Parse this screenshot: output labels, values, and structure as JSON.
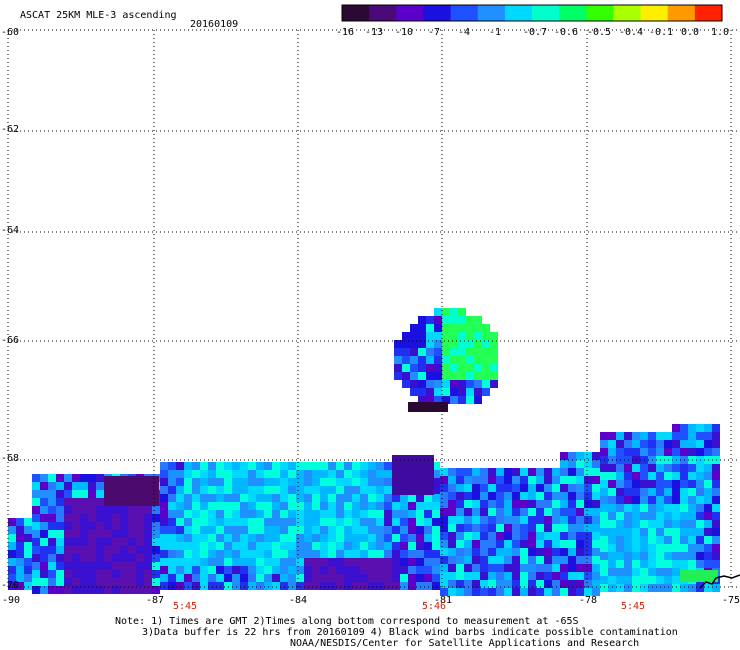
{
  "header": {
    "title": "ASCAT 25KM MLE-3 ascending",
    "date": "20160109"
  },
  "colorbar": {
    "labels": [
      "-16",
      "-13",
      "-10",
      "-7",
      "-4",
      "-1",
      "-0.7",
      "-0.6",
      "-0.5",
      "-0.4",
      "-0.1",
      "0.0",
      "1.0"
    ],
    "colors": [
      "#2a0a33",
      "#4b0a7a",
      "#5a00c8",
      "#1a10e0",
      "#1e50ff",
      "#1e90ff",
      "#00d8ff",
      "#00ffcc",
      "#00ff66",
      "#33ff00",
      "#aaff00",
      "#ffee00",
      "#ff9900",
      "#ff2200"
    ]
  },
  "map": {
    "lat_labels": [
      "-60",
      "-62",
      "-64",
      "-66",
      "-68",
      "-70"
    ],
    "lon_labels": [
      "-90",
      "-87",
      "-84",
      "-81",
      "-78",
      "-75"
    ],
    "time_labels": [
      "5:45",
      "5:46",
      "5:45"
    ]
  },
  "footer": {
    "line1": "Note: 1) Times are GMT 2)Times along bottom correspond to measurement at -65S",
    "line2": "3)Data buffer is 22 hrs from 20160109 4) Black wind barbs indicate possible contamination",
    "line3": "NOAA/NESDIS/Center for Satellite Applications and Research"
  }
}
